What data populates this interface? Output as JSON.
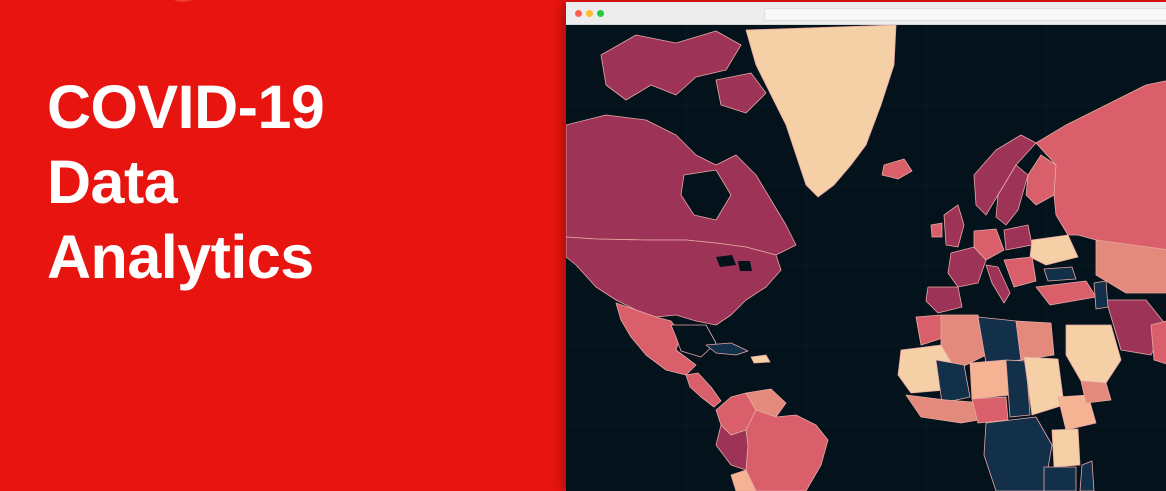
{
  "hero": {
    "title_lines": [
      "COVID-19",
      "Data",
      "Analytics"
    ]
  },
  "colors": {
    "background_red": "#e8140f",
    "map_ocean": "#04121c",
    "choropleth_low": "#f5cfa5",
    "choropleth_mid": "#d9606b",
    "choropleth_high": "#9e3358",
    "choropleth_none": "#12304a"
  },
  "browser": {
    "window_controls": [
      "close-dot",
      "minimize-dot",
      "maximize-dot"
    ]
  },
  "map": {
    "type": "choropleth-world-map",
    "icon": "world-map"
  }
}
